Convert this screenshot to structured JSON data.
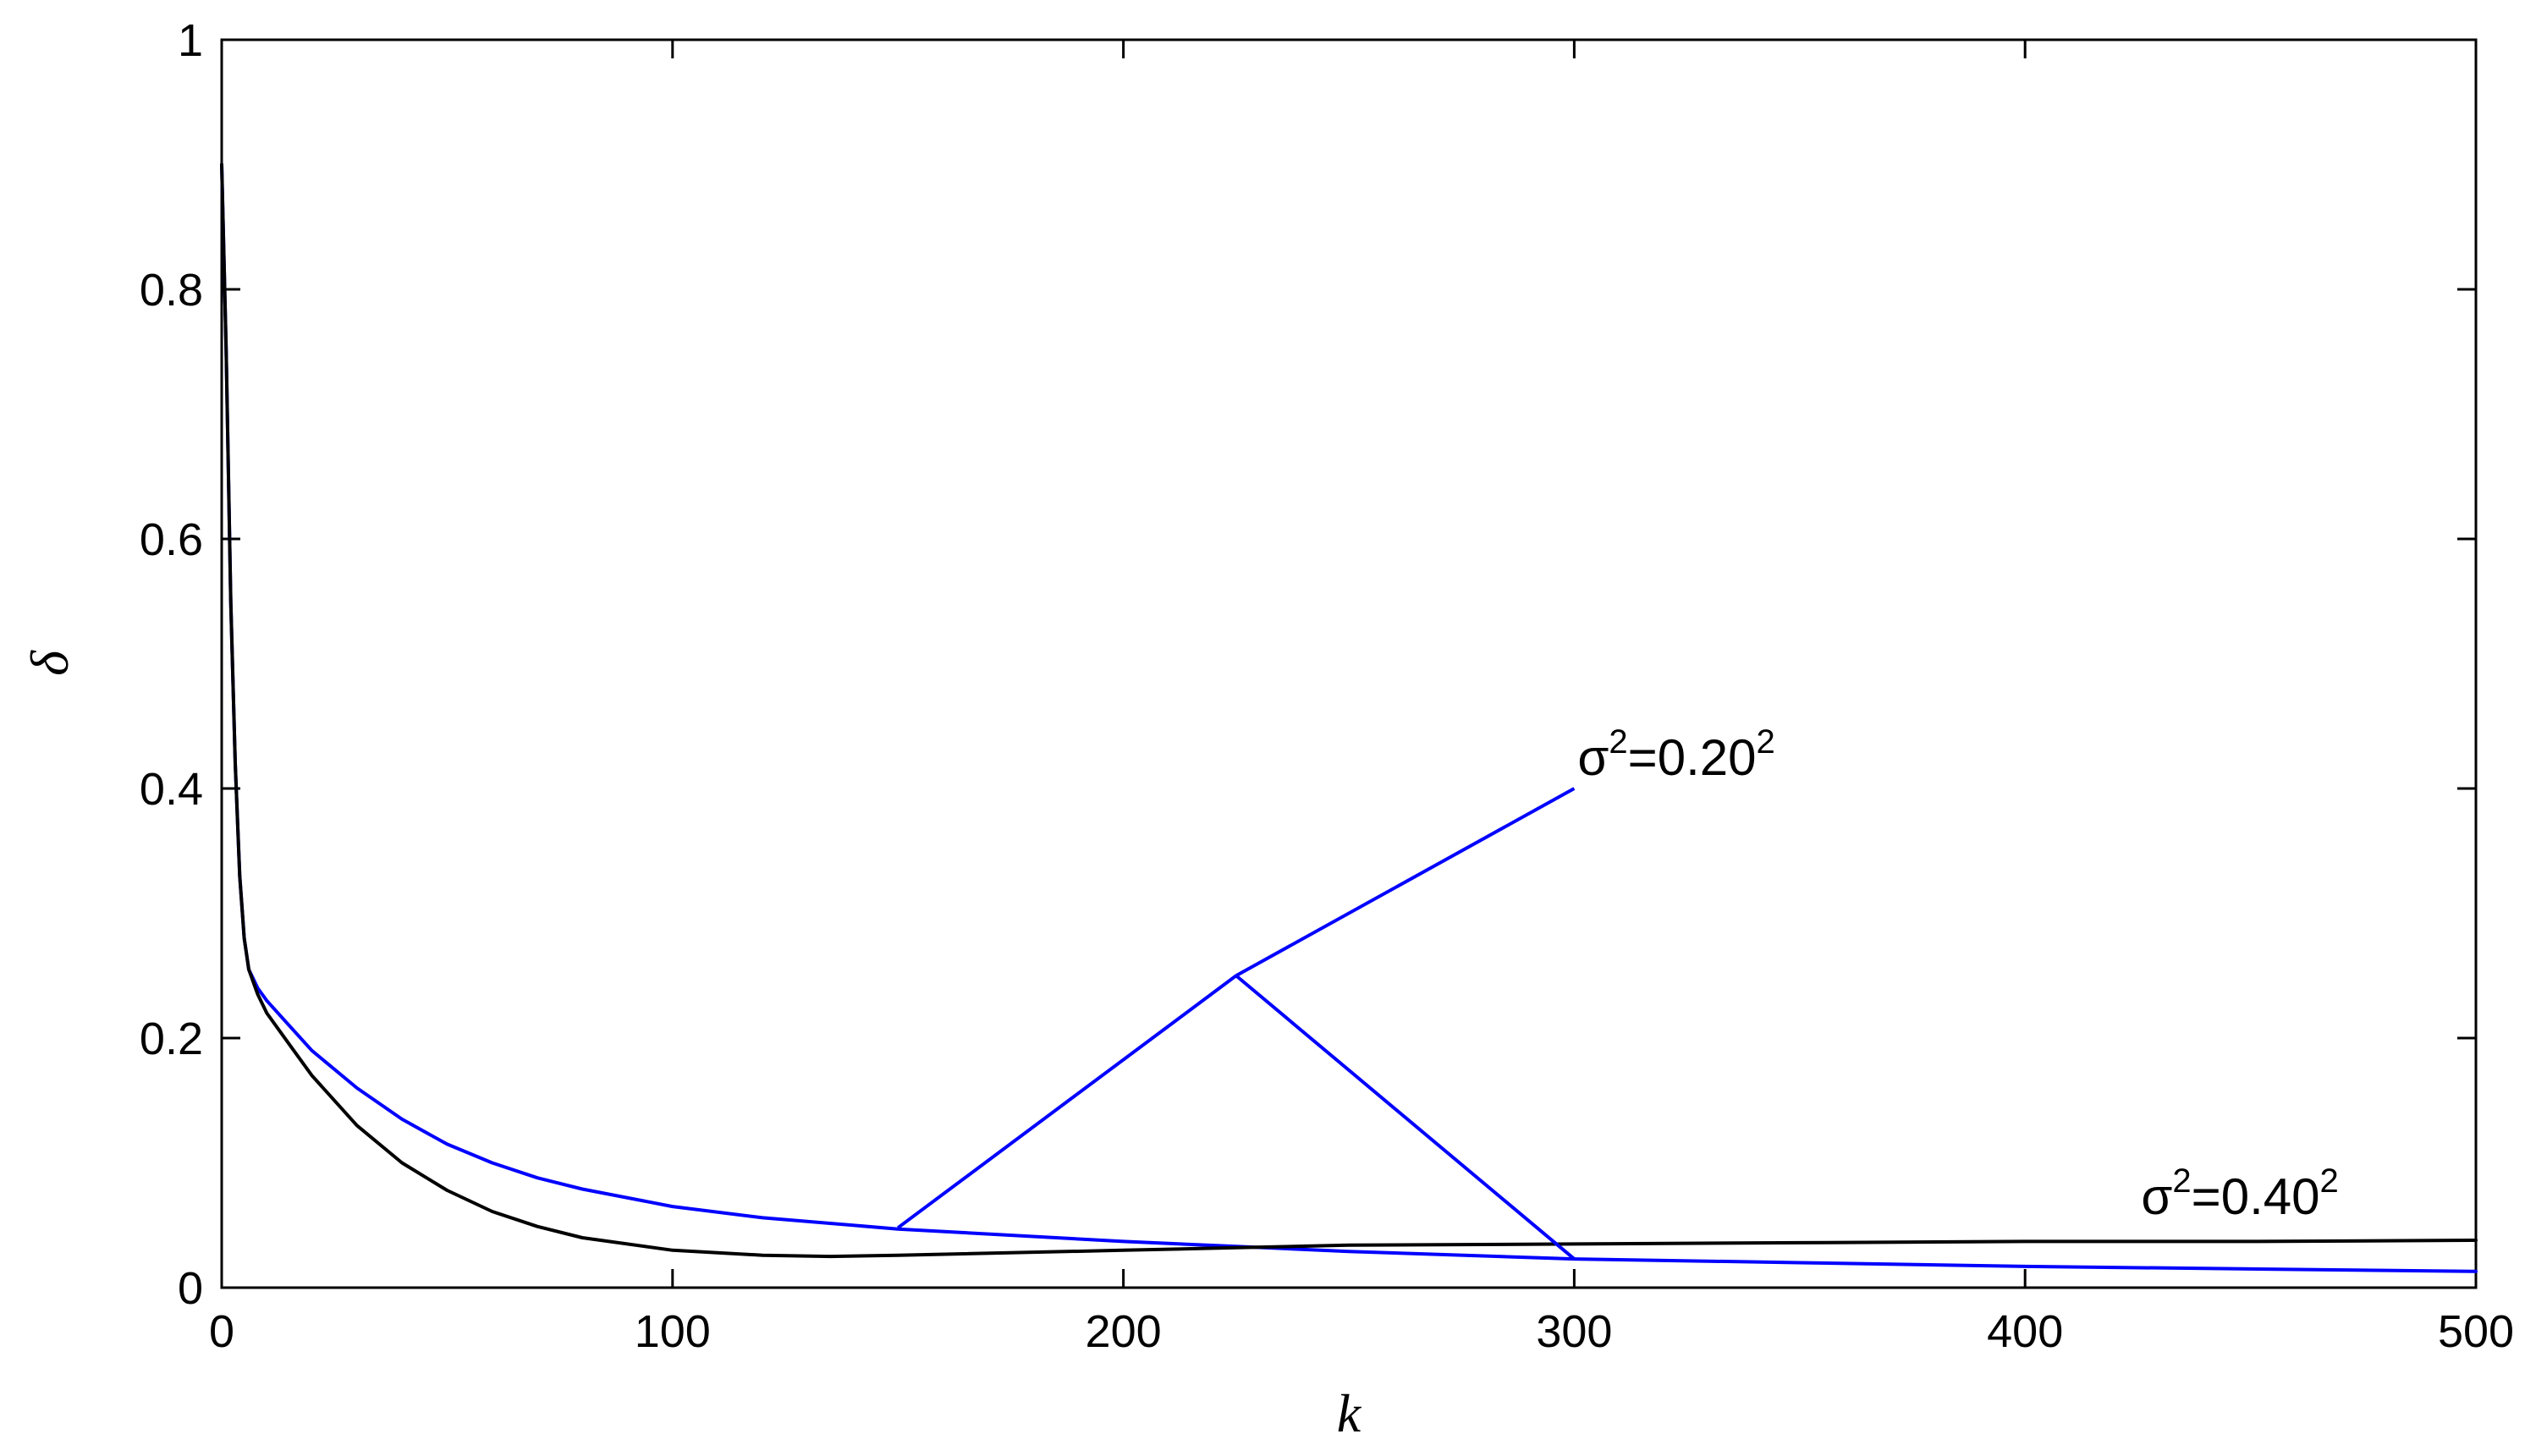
{
  "chart_data": {
    "type": "line",
    "title": "",
    "xlabel": "k",
    "ylabel": "δ",
    "xlim": [
      0,
      500
    ],
    "ylim": [
      0,
      1
    ],
    "xticks": [
      "0",
      "100",
      "200",
      "300",
      "400",
      "500"
    ],
    "yticks": [
      "0",
      "0.2",
      "0.4",
      "0.6",
      "0.8",
      "1"
    ],
    "grid": false,
    "legend": "none",
    "colors": {
      "blue": "#0000ff",
      "black": "#000000"
    },
    "series": [
      {
        "color": "#0000ff",
        "x": [
          0,
          1,
          2,
          3,
          4,
          5,
          6,
          8,
          10,
          15,
          20,
          30,
          40,
          50,
          60,
          70,
          80,
          100,
          120,
          150,
          200,
          225,
          250,
          300,
          350,
          400,
          450,
          500
        ],
        "y": [
          0.9,
          0.75,
          0.55,
          0.42,
          0.33,
          0.28,
          0.255,
          0.24,
          0.23,
          0.21,
          0.19,
          0.16,
          0.135,
          0.115,
          0.1,
          0.088,
          0.079,
          0.065,
          0.056,
          0.047,
          0.037,
          0.033,
          0.029,
          0.023,
          0.02,
          0.017,
          0.015,
          0.013
        ]
      },
      {
        "color": "#000000",
        "x": [
          0,
          1,
          2,
          3,
          4,
          5,
          6,
          8,
          10,
          15,
          20,
          30,
          40,
          50,
          60,
          70,
          80,
          100,
          120,
          135,
          150,
          200,
          225,
          250,
          300,
          350,
          400,
          450,
          500
        ],
        "y": [
          0.9,
          0.75,
          0.55,
          0.42,
          0.33,
          0.28,
          0.255,
          0.235,
          0.22,
          0.195,
          0.17,
          0.13,
          0.1,
          0.078,
          0.061,
          0.049,
          0.04,
          0.03,
          0.026,
          0.025,
          0.026,
          0.03,
          0.032,
          0.034,
          0.035,
          0.036,
          0.037,
          0.037,
          0.038
        ]
      }
    ],
    "annotations": [
      {
        "text": "σ²=0.20²",
        "base": "σ",
        "sup1": "2",
        "mid": "=0.20",
        "sup2": "2",
        "color": "#0000ff",
        "label_x": 300,
        "label_y": 0.4,
        "pointers": [
          {
            "from": [
              300,
              0.4
            ],
            "to": [
              225,
              0.25
            ]
          },
          {
            "from": [
              225,
              0.25
            ],
            "to": [
              150,
              0.048
            ]
          },
          {
            "from": [
              225,
              0.25
            ],
            "to": [
              300,
              0.023
            ]
          }
        ]
      },
      {
        "text": "σ²=0.40²",
        "base": "σ",
        "sup1": "2",
        "mid": "=0.40",
        "sup2": "2",
        "label_x": 425,
        "label_y": 0.048
      }
    ]
  }
}
